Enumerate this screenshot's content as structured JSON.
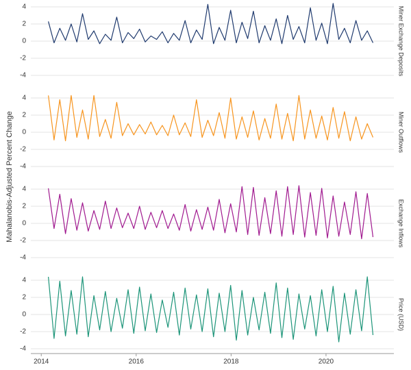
{
  "chart_data": {
    "type": "line",
    "ylabel": "Mahalanobis-Adjusted Percent Change",
    "xlim": [
      2013.78,
      2021.43
    ],
    "xticks": [
      2014,
      2016,
      2018,
      2020
    ],
    "ylim": [
      -4.4,
      4.4
    ],
    "yticks": [
      -4,
      -2,
      0,
      2,
      4
    ],
    "grid": true,
    "x": [
      2014.15,
      2014.27,
      2014.39,
      2014.51,
      2014.63,
      2014.75,
      2014.87,
      2014.99,
      2015.11,
      2015.23,
      2015.35,
      2015.47,
      2015.59,
      2015.71,
      2015.83,
      2015.95,
      2016.07,
      2016.19,
      2016.31,
      2016.43,
      2016.55,
      2016.67,
      2016.79,
      2016.91,
      2017.03,
      2017.15,
      2017.27,
      2017.39,
      2017.51,
      2017.63,
      2017.75,
      2017.87,
      2017.99,
      2018.11,
      2018.23,
      2018.35,
      2018.47,
      2018.59,
      2018.71,
      2018.83,
      2018.95,
      2019.07,
      2019.19,
      2019.31,
      2019.43,
      2019.55,
      2019.67,
      2019.79,
      2019.91,
      2020.03,
      2020.15,
      2020.27,
      2020.39,
      2020.51,
      2020.63,
      2020.75,
      2020.87,
      2020.99
    ],
    "series": [
      {
        "name": "Miner Exchange Deposits",
        "color": "#1f3a6e",
        "values": [
          2.3,
          -0.2,
          1.5,
          0.1,
          2.0,
          -0.1,
          3.2,
          0.2,
          1.2,
          -0.3,
          0.8,
          0.1,
          2.8,
          -0.2,
          1.0,
          0.3,
          1.4,
          -0.1,
          0.6,
          0.2,
          1.1,
          -0.2,
          0.9,
          0.1,
          2.4,
          -0.2,
          1.3,
          0.2,
          4.3,
          -0.3,
          1.6,
          0.1,
          3.6,
          -0.2,
          2.2,
          0.3,
          3.5,
          -0.2,
          1.8,
          0.1,
          2.6,
          -0.3,
          3.0,
          0.2,
          1.7,
          -0.2,
          3.9,
          0.1,
          2.1,
          -0.3,
          4.4,
          0.2,
          1.5,
          -0.2,
          2.4,
          0.1,
          1.2,
          -0.2
        ]
      },
      {
        "name": "Miner Outflows",
        "color": "#f7941d",
        "values": [
          4.3,
          -0.9,
          3.8,
          -1.0,
          4.3,
          -0.6,
          2.6,
          -0.8,
          4.3,
          -0.5,
          1.5,
          -0.7,
          3.5,
          -0.4,
          1.0,
          -0.3,
          0.9,
          -0.2,
          1.2,
          -0.3,
          0.8,
          -0.4,
          2.0,
          -0.3,
          1.1,
          -0.5,
          3.8,
          -0.6,
          1.4,
          -0.4,
          2.3,
          -0.7,
          4.0,
          -0.8,
          1.8,
          -0.6,
          2.5,
          -0.9,
          1.6,
          -0.7,
          3.3,
          -0.8,
          2.2,
          -1.0,
          4.3,
          -0.8,
          2.6,
          -0.7,
          1.9,
          -0.9,
          2.9,
          -0.7,
          2.4,
          -1.0,
          1.8,
          -0.8,
          1.0,
          -0.6
        ]
      },
      {
        "name": "Exchange Inflows",
        "color": "#a0198f",
        "values": [
          4.1,
          -0.6,
          3.4,
          -1.2,
          2.9,
          -0.8,
          2.4,
          -0.9,
          1.5,
          -0.7,
          2.6,
          -0.6,
          1.8,
          -0.5,
          1.2,
          -0.6,
          2.0,
          -0.7,
          1.3,
          -0.5,
          1.5,
          -0.6,
          1.1,
          -0.8,
          2.2,
          -0.9,
          1.6,
          -0.7,
          1.9,
          -0.8,
          2.8,
          -1.1,
          2.3,
          -1.0,
          4.3,
          -1.3,
          4.2,
          -1.4,
          3.0,
          -1.2,
          3.8,
          -1.5,
          4.3,
          -1.3,
          4.4,
          -1.6,
          3.6,
          -1.4,
          4.1,
          -1.7,
          3.2,
          -1.5,
          2.5,
          -1.3,
          3.7,
          -1.8,
          3.5,
          -1.6
        ]
      },
      {
        "name": "Price (USD)",
        "color": "#1b9478",
        "values": [
          4.4,
          -2.8,
          3.9,
          -2.5,
          2.8,
          -2.3,
          4.4,
          -2.6,
          2.2,
          -1.8,
          2.7,
          -2.0,
          1.9,
          -1.6,
          2.9,
          -2.2,
          3.2,
          -1.9,
          2.4,
          -2.1,
          1.7,
          -1.5,
          2.6,
          -2.4,
          3.1,
          -1.7,
          2.3,
          -2.0,
          3.0,
          -2.6,
          2.5,
          -2.0,
          3.4,
          -3.0,
          2.8,
          -2.4,
          2.0,
          -1.8,
          2.6,
          -2.2,
          3.7,
          -2.7,
          3.1,
          -2.9,
          2.4,
          -1.7,
          2.2,
          -2.5,
          2.9,
          -2.0,
          3.3,
          -3.2,
          2.5,
          -2.3,
          2.9,
          -1.9,
          4.4,
          -2.4
        ]
      }
    ]
  }
}
